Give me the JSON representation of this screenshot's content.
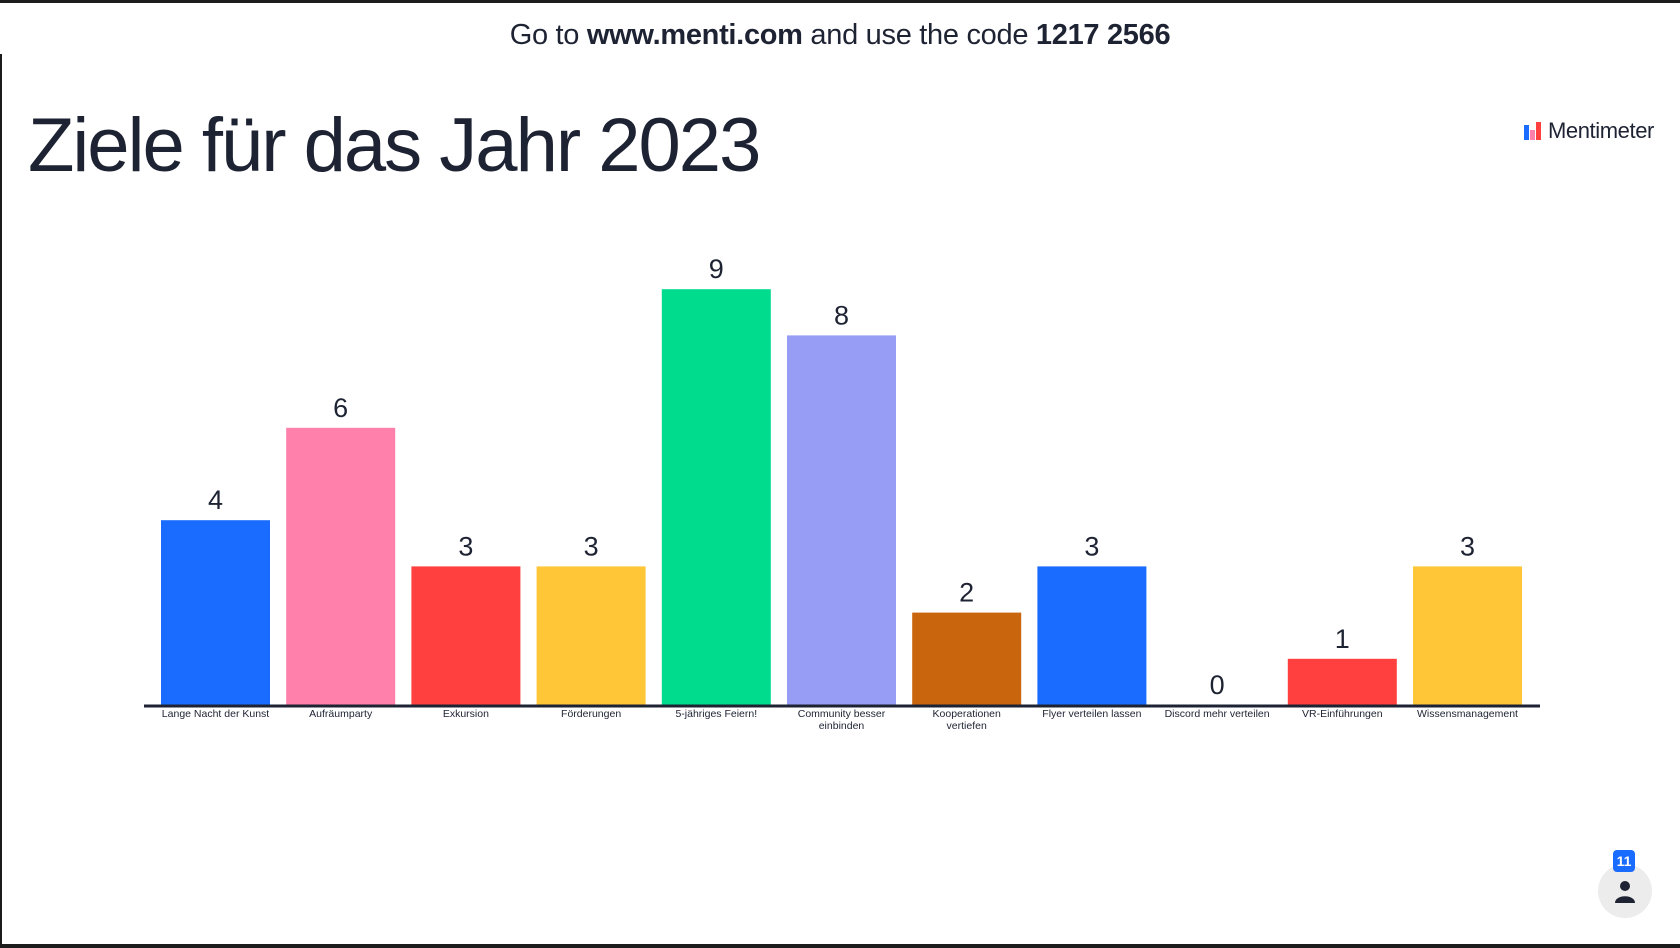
{
  "join": {
    "prefix": "Go to ",
    "url": "www.menti.com",
    "middle": " and use the code ",
    "code": "1217 2566"
  },
  "slide": {
    "title": "Ziele für das Jahr 2023"
  },
  "brand": {
    "name": "Mentimeter",
    "icon": "mentimeter-logo-icon"
  },
  "participants": {
    "count": "11",
    "icon": "person-icon"
  },
  "chart_data": {
    "type": "bar",
    "title": "Ziele für das Jahr 2023",
    "xlabel": "",
    "ylabel": "",
    "ylim": [
      0,
      9
    ],
    "grid": false,
    "legend": "none",
    "categories": [
      "Lange Nacht der Kunst",
      "Aufräumparty",
      "Exkursion",
      "Förderungen",
      "5-jähriges Feiern!",
      "Community besser einbinden",
      "Kooperationen vertiefen",
      "Flyer verteilen lassen",
      "Discord mehr verteilen",
      "VR-Einführungen",
      "Wissensmanagement"
    ],
    "values": [
      4,
      6,
      3,
      3,
      9,
      8,
      2,
      3,
      0,
      1,
      3
    ],
    "colors": [
      "#196cff",
      "#ff80ab",
      "#ff403f",
      "#ffc638",
      "#00dc8e",
      "#979cf5",
      "#c9650c",
      "#196cff",
      "#ff80ab",
      "#ff403f",
      "#ffc638"
    ]
  }
}
